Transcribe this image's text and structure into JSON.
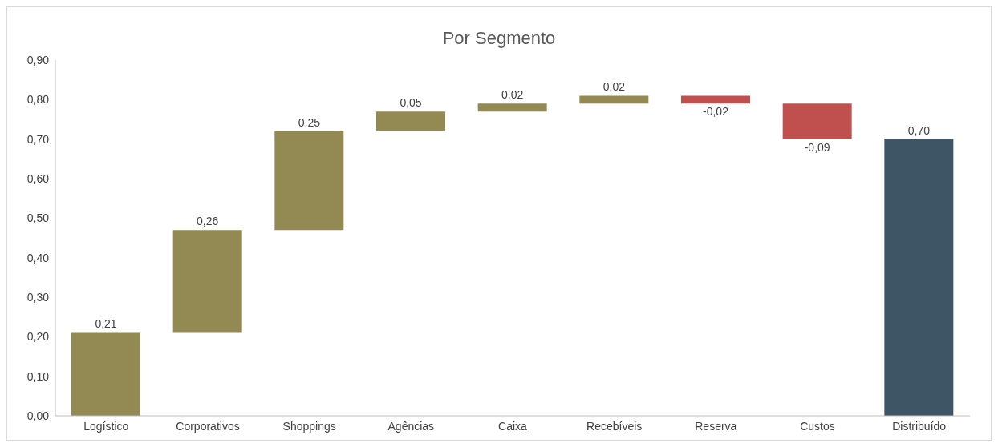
{
  "chart_data": {
    "type": "bar",
    "title": "Por Segmento",
    "categories": [
      "Logístico",
      "Corporativos",
      "Shoppings",
      "Agências",
      "Caixa",
      "Recebíveis",
      "Reserva",
      "Custos",
      "Distribuído"
    ],
    "values": [
      0.21,
      0.26,
      0.25,
      0.05,
      0.02,
      0.02,
      -0.02,
      -0.09,
      0.7
    ],
    "base": [
      0,
      0.21,
      0.47,
      0.72,
      0.77,
      0.79,
      0.81,
      0.79,
      0
    ],
    "colors": [
      "#938953",
      "#938953",
      "#938953",
      "#938953",
      "#938953",
      "#938953",
      "#c0504d",
      "#c0504d",
      "#3e5566"
    ],
    "value_labels": [
      "0,21",
      "0,26",
      "0,25",
      "0,05",
      "0,02",
      "0,02",
      "-0,02",
      "-0,09",
      "0,70"
    ],
    "ylim": [
      0,
      0.9
    ],
    "yticks": [
      {
        "value": 0,
        "label": "0,00"
      },
      {
        "value": 0.1,
        "label": "0,10"
      },
      {
        "value": 0.2,
        "label": "0,20"
      },
      {
        "value": 0.3,
        "label": "0,30"
      },
      {
        "value": 0.4,
        "label": "0,40"
      },
      {
        "value": 0.5,
        "label": "0,50"
      },
      {
        "value": 0.6,
        "label": "0,60"
      },
      {
        "value": 0.7,
        "label": "0,70"
      },
      {
        "value": 0.8,
        "label": "0,80"
      },
      {
        "value": 0.9,
        "label": "0,90"
      }
    ],
    "grid": false,
    "legend": false
  }
}
